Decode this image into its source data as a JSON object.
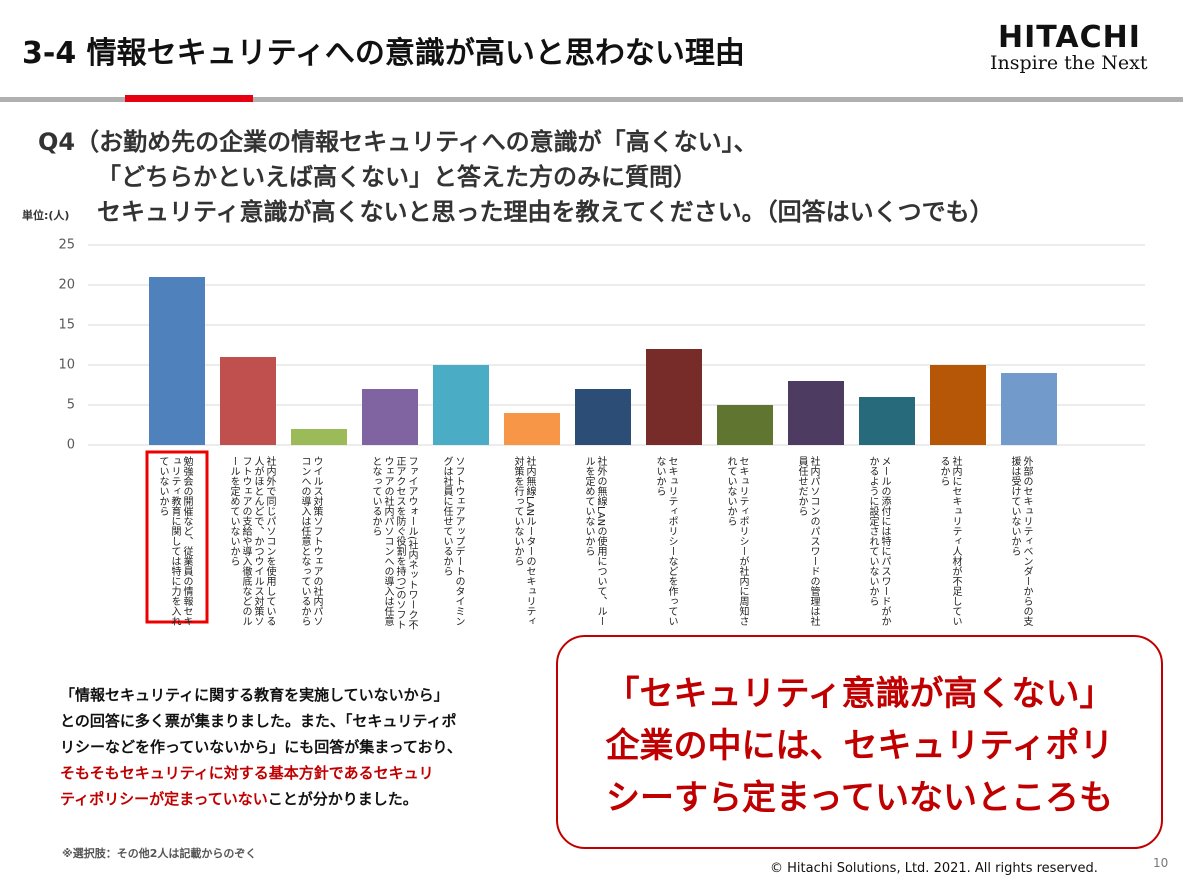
{
  "header": {
    "title": "3-4  情報セキュリティへの意識が高いと思わない理由",
    "logo": "HITACHI",
    "tagline": "Inspire the Next"
  },
  "question": {
    "lines": [
      "Q4（お勤め先の企業の情報セキュリティへの意識が「高くない」、",
      "「どちらかといえば高くない」と答えた方のみに質問）",
      "セキュリティ意識が高くないと思った理由を教えてください。（回答はいくつでも）"
    ]
  },
  "chart_data": {
    "type": "bar",
    "unit_label": "単位:(人)",
    "categories": [
      "勉強会の開催など、従業員の情報セキュリティ教育に関しては特に力を入れていないから",
      "社内外で同じパソコンを使用している人がほとんどで、かつウイルス対策ソフトウェアの支給や導入徹底などのルールを定めていないから",
      "ウイルス対策ソフトウェアの社内パソコンへの導入は任意となっているから",
      "ファイアウォール(社内ネットワーク不正アクセスを防ぐ役割を持つ)のソフトウェアの社内パソコンへの導入は任意となっているから",
      "ソフトウェアアップデートのタイミングは社員に任せているから",
      "社内無線LANルーターのセキュリティ対策を行っていないから",
      "社外の無線LANの使用について、ルールを定めていないから",
      "セキュリティポリシーなどを作っていないから",
      "セキュリティポリシーが社内に周知されていないから",
      "社内パソコンのパスワードの管理は社員任せだから",
      "メールの添付には特にパスワードがかかるように設定されていないから",
      "社内にセキュリティ人材が不足しているから",
      "外部のセキュリティベンダーからの支援は受けていないから"
    ],
    "values": [
      21,
      11,
      2,
      7,
      10,
      4,
      7,
      12,
      5,
      8,
      6,
      10,
      9
    ],
    "colors": [
      "#4f81bd",
      "#c0504d",
      "#9bbb59",
      "#8064a2",
      "#4bacc6",
      "#f79646",
      "#2c4d75",
      "#772c2a",
      "#5f7530",
      "#4d3b62",
      "#276a7c",
      "#b65708",
      "#729aca"
    ],
    "ylim": [
      0,
      25
    ],
    "yticks": [
      0,
      5,
      10,
      15,
      20,
      25
    ],
    "grid": true
  },
  "summary": {
    "lines": [
      [
        {
          "text": "「情報セキュリティに関する教育を実施していないから」",
          "emphasis": false
        }
      ],
      [
        {
          "text": "との回答に多く票が集まりました。また、「セキュリティポ",
          "emphasis": false
        }
      ],
      [
        {
          "text": "リシーなどを作っていないから」にも回答が集まっており、",
          "emphasis": false
        }
      ],
      [
        {
          "text": "そもそもセキュリティに対する基本方針であるセキュリ",
          "emphasis": true
        }
      ],
      [
        {
          "text": "ティポリシーが定まっていない",
          "emphasis": true
        },
        {
          "text": "ことが分かりました。",
          "emphasis": false
        }
      ]
    ]
  },
  "callout": {
    "lines": [
      "「セキュリティ意識が高くない」",
      "企業の中には、セキュリティポリ",
      "シーすら定まっていないところも"
    ]
  },
  "footnote": "※選択肢：その他2人は記載からのぞく",
  "footer": {
    "copyright": "© Hitachi Solutions, Ltd. 2021. All rights reserved.",
    "page": "10"
  }
}
